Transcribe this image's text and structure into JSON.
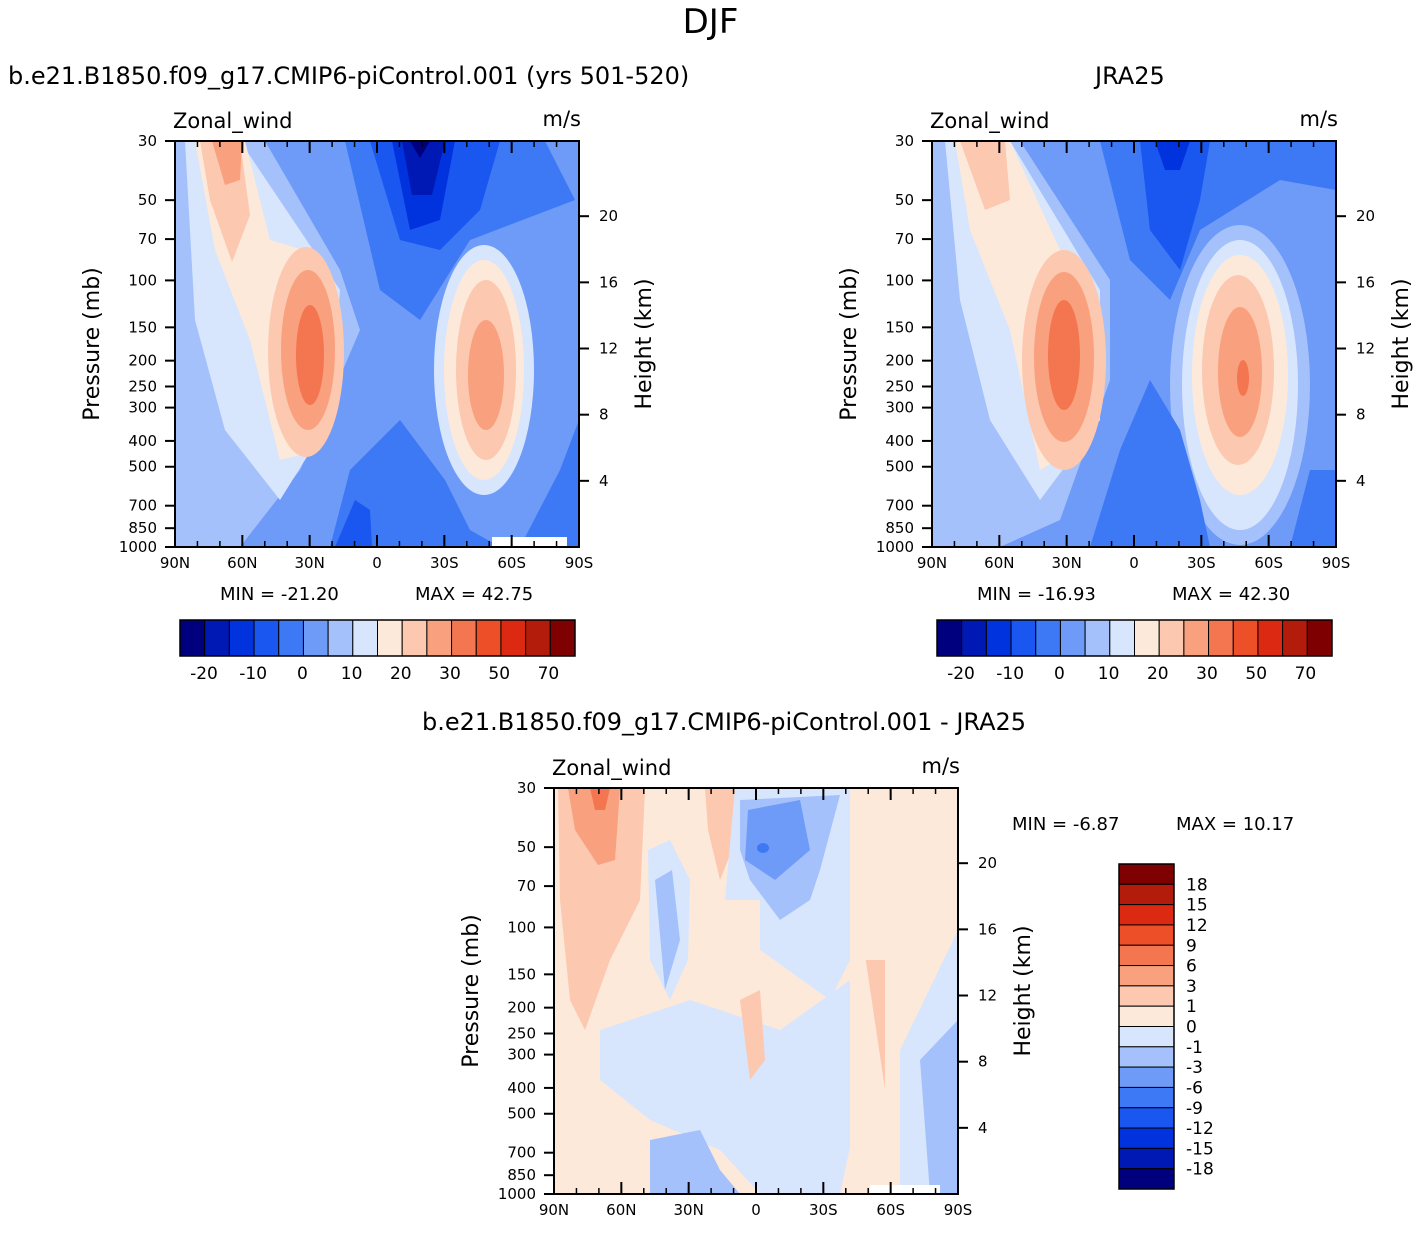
{
  "super_title": "DJF",
  "panels": [
    {
      "title": "b.e21.B1850.f09_g17.CMIP6-piControl.001 (yrs 501-520)",
      "left_label": "Zonal_wind",
      "right_label": "m/s",
      "min_text": "MIN  =  -21.20",
      "max_text": "MAX  =   42.75"
    },
    {
      "title": "JRA25",
      "left_label": "Zonal_wind",
      "right_label": "m/s",
      "min_text": "MIN  =  -16.93",
      "max_text": "MAX  =   42.30"
    },
    {
      "title": "b.e21.B1850.f09_g17.CMIP6-piControl.001  -  JRA25",
      "left_label": "Zonal_wind",
      "right_label": "m/s",
      "min_text": "MIN  =    -6.87",
      "max_text": "MAX  =   10.17"
    }
  ],
  "chart_data": [
    {
      "type": "heatmap",
      "subtitle": "b.e21.B1850.f09_g17.CMIP6-piControl.001 (yrs 501-520)",
      "variable": "Zonal_wind",
      "units": "m/s",
      "xlabel": "",
      "ylabel": "Pressure (mb)",
      "y2label": "Height (km)",
      "x_ticks": [
        "90N",
        "60N",
        "30N",
        "0",
        "30S",
        "60S",
        "90S"
      ],
      "y_ticks": [
        30,
        50,
        70,
        100,
        150,
        200,
        250,
        300,
        400,
        500,
        700,
        850,
        1000
      ],
      "y2_ticks": [
        20,
        16,
        12,
        8,
        4
      ],
      "min": -21.2,
      "max": 42.75,
      "colorbar_ticks": [
        "-20",
        "-10",
        "0",
        "10",
        "20",
        "30",
        "50",
        "70"
      ]
    },
    {
      "type": "heatmap",
      "subtitle": "JRA25",
      "variable": "Zonal_wind",
      "units": "m/s",
      "xlabel": "",
      "ylabel": "Pressure (mb)",
      "y2label": "Height (km)",
      "x_ticks": [
        "90N",
        "60N",
        "30N",
        "0",
        "30S",
        "60S",
        "90S"
      ],
      "y_ticks": [
        30,
        50,
        70,
        100,
        150,
        200,
        250,
        300,
        400,
        500,
        700,
        850,
        1000
      ],
      "y2_ticks": [
        20,
        16,
        12,
        8,
        4
      ],
      "min": -16.93,
      "max": 42.3,
      "colorbar_ticks": [
        "-20",
        "-10",
        "0",
        "10",
        "20",
        "30",
        "50",
        "70"
      ]
    },
    {
      "type": "heatmap",
      "subtitle": "b.e21.B1850.f09_g17.CMIP6-piControl.001 - JRA25",
      "variable": "Zonal_wind",
      "units": "m/s",
      "xlabel": "",
      "ylabel": "Pressure (mb)",
      "y2label": "Height (km)",
      "x_ticks": [
        "90N",
        "60N",
        "30N",
        "0",
        "30S",
        "60S",
        "90S"
      ],
      "y_ticks": [
        30,
        50,
        70,
        100,
        150,
        200,
        250,
        300,
        400,
        500,
        700,
        850,
        1000
      ],
      "y2_ticks": [
        20,
        16,
        12,
        8,
        4
      ],
      "min": -6.87,
      "max": 10.17,
      "colorbar_ticks": [
        "18",
        "15",
        "12",
        "9",
        "6",
        "3",
        "1",
        "0",
        "-1",
        "-3",
        "-6",
        "-9",
        "-12",
        "-15",
        "-18"
      ]
    }
  ],
  "colors": {
    "abs_scale": [
      "#00007f",
      "#0018b4",
      "#0033dd",
      "#1a56f0",
      "#3d78f5",
      "#6e9af8",
      "#a5c1fb",
      "#d7e6fd",
      "#fde9da",
      "#fcc8b0",
      "#f9a07e",
      "#f37650",
      "#ed4f28",
      "#dc2a12",
      "#b31b0a",
      "#7f0000"
    ],
    "diff_scale": [
      "#00007f",
      "#0018b4",
      "#0033dd",
      "#1a56f0",
      "#3d78f5",
      "#6e9af8",
      "#a5c1fb",
      "#d7e6fd",
      "#fde9da",
      "#fcc8b0",
      "#f9a07e",
      "#f37650",
      "#ed4f28",
      "#dc2a12",
      "#b31b0a",
      "#7f0000"
    ]
  }
}
